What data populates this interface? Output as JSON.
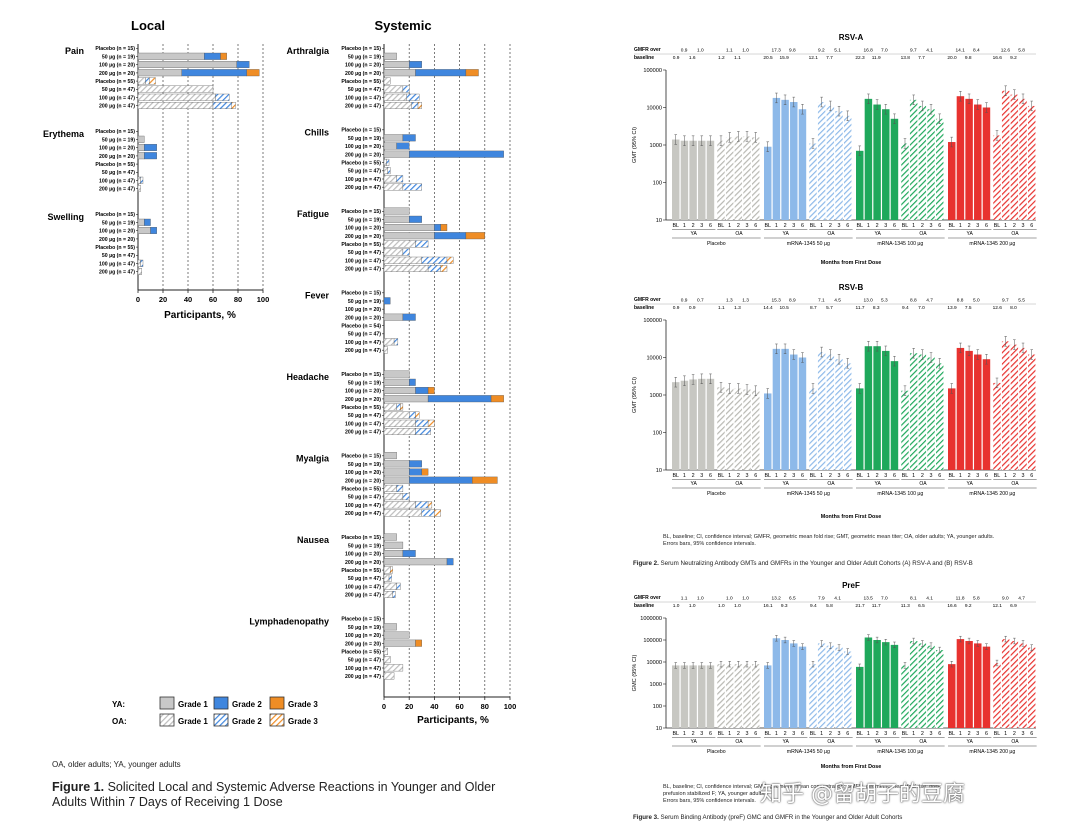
{
  "fig1": {
    "local_title": "Local",
    "systemic_title": "Systemic",
    "xlabel": "Participants, %",
    "ticks": [
      "0",
      "20",
      "40",
      "60",
      "80",
      "100"
    ],
    "dose_labels": [
      "Placebo (n = 15)",
      "50 µg (n = 19)",
      "100 µg (n = 20)",
      "200 µg (n = 20)",
      "Placebo (n = 55)",
      "50 µg (n = 47)",
      "100 µg (n = 47)",
      "200 µg (n = 47)"
    ],
    "fever_placebo_oa_label": "Placebo (n = 54)",
    "legend": {
      "ya": "YA:",
      "oa": "OA:",
      "g1": "Grade 1",
      "g2": "Grade 2",
      "g3": "Grade 3"
    },
    "colors": {
      "g1": "#c8c8c8",
      "g2": "#3f86de",
      "g3": "#ef8d25"
    },
    "footnote": "OA, older adults;  YA, younger adults",
    "caption_bold": "Figure 1.",
    "caption_text": " Solicited Local and Systemic Adverse Reactions in Younger and Older Adults Within 7 Days of Receiving 1 Dose"
  },
  "chart_data": [
    {
      "type": "bar",
      "title": "Local",
      "orientation": "horizontal-stacked",
      "xlabel": "Participants, %",
      "xlim": [
        0,
        100
      ],
      "series": [
        "Grade 1",
        "Grade 2",
        "Grade 3"
      ],
      "groups": [
        {
          "name": "Pain",
          "values": [
            [
              0,
              0,
              0
            ],
            [
              53,
              13,
              5
            ],
            [
              79,
              10,
              0
            ],
            [
              35,
              52,
              10
            ],
            [
              6,
              3,
              5
            ],
            [
              60,
              0,
              0
            ],
            [
              62,
              11,
              0
            ],
            [
              60,
              15,
              3
            ]
          ]
        },
        {
          "name": "Erythema",
          "values": [
            [
              0,
              0,
              0
            ],
            [
              5,
              0,
              0
            ],
            [
              5,
              10,
              0
            ],
            [
              5,
              10,
              0
            ],
            [
              0,
              0,
              0
            ],
            [
              0,
              0,
              0
            ],
            [
              2,
              2,
              0
            ],
            [
              2,
              0,
              0
            ]
          ]
        },
        {
          "name": "Swelling",
          "values": [
            [
              0,
              0,
              0
            ],
            [
              5,
              5,
              0
            ],
            [
              10,
              5,
              0
            ],
            [
              0,
              0,
              0
            ],
            [
              0,
              0,
              0
            ],
            [
              0,
              0,
              0
            ],
            [
              2,
              2,
              0
            ],
            [
              3,
              0,
              0
            ]
          ]
        }
      ]
    },
    {
      "type": "bar",
      "title": "Systemic",
      "orientation": "horizontal-stacked",
      "xlabel": "Participants, %",
      "xlim": [
        0,
        100
      ],
      "series": [
        "Grade 1",
        "Grade 2",
        "Grade 3"
      ],
      "groups": [
        {
          "name": "Arthralgia",
          "values": [
            [
              0,
              0,
              0
            ],
            [
              10,
              0,
              0
            ],
            [
              20,
              10,
              0
            ],
            [
              25,
              40,
              10
            ],
            [
              5,
              0,
              0
            ],
            [
              15,
              5,
              0
            ],
            [
              18,
              10,
              0
            ],
            [
              22,
              5,
              3
            ]
          ]
        },
        {
          "name": "Chills",
          "values": [
            [
              0,
              0,
              0
            ],
            [
              15,
              10,
              0
            ],
            [
              10,
              10,
              0
            ],
            [
              20,
              75,
              0
            ],
            [
              2,
              2,
              0
            ],
            [
              3,
              2,
              0
            ],
            [
              10,
              5,
              0
            ],
            [
              15,
              15,
              0
            ]
          ]
        },
        {
          "name": "Fatigue",
          "values": [
            [
              20,
              0,
              0
            ],
            [
              20,
              10,
              0
            ],
            [
              40,
              5,
              5
            ],
            [
              40,
              25,
              15
            ],
            [
              25,
              10,
              0
            ],
            [
              15,
              5,
              0
            ],
            [
              30,
              20,
              5
            ],
            [
              35,
              10,
              5
            ]
          ]
        },
        {
          "name": "Fever",
          "values": [
            [
              0,
              0,
              0
            ],
            [
              0,
              5,
              0
            ],
            [
              0,
              0,
              0
            ],
            [
              15,
              10,
              0
            ],
            [
              0,
              0,
              0
            ],
            [
              0,
              0,
              0
            ],
            [
              8,
              3,
              0
            ],
            [
              3,
              0,
              0
            ]
          ]
        },
        {
          "name": "Headache",
          "values": [
            [
              20,
              0,
              0
            ],
            [
              20,
              5,
              0
            ],
            [
              25,
              10,
              5
            ],
            [
              35,
              50,
              10
            ],
            [
              10,
              3,
              2
            ],
            [
              20,
              5,
              3
            ],
            [
              25,
              10,
              5
            ],
            [
              25,
              12,
              0
            ]
          ]
        },
        {
          "name": "Myalgia",
          "values": [
            [
              10,
              0,
              0
            ],
            [
              20,
              10,
              0
            ],
            [
              20,
              10,
              5
            ],
            [
              20,
              50,
              20
            ],
            [
              10,
              5,
              0
            ],
            [
              15,
              5,
              0
            ],
            [
              25,
              10,
              3
            ],
            [
              30,
              10,
              5
            ]
          ]
        },
        {
          "name": "Nausea",
          "values": [
            [
              10,
              0,
              0
            ],
            [
              15,
              0,
              0
            ],
            [
              15,
              10,
              0
            ],
            [
              50,
              5,
              0
            ],
            [
              5,
              0,
              2
            ],
            [
              4,
              2,
              0
            ],
            [
              10,
              3,
              0
            ],
            [
              7,
              2,
              0
            ]
          ]
        },
        {
          "name": "Lymphadenopathy",
          "values": [
            [
              0,
              0,
              0
            ],
            [
              10,
              0,
              0
            ],
            [
              20,
              0,
              0
            ],
            [
              25,
              0,
              5
            ],
            [
              3,
              0,
              0
            ],
            [
              5,
              0,
              0
            ],
            [
              15,
              0,
              0
            ],
            [
              8,
              0,
              0
            ]
          ]
        }
      ]
    },
    {
      "type": "bar",
      "title": "RSV-A",
      "ylabel": "GMT (95% CI)",
      "xlabel": "Months from First Dose",
      "yscale": "log",
      "ylim": [
        10,
        100000
      ],
      "yticks": [
        "100000",
        "10000",
        "1000",
        "100",
        "10"
      ],
      "timepoints": [
        "BL",
        "1",
        "2",
        "3",
        "6"
      ],
      "groups": [
        "Placebo",
        "mRNA-1345 50 µg",
        "mRNA-1345 100 µg",
        "mRNA-1345 200 µg"
      ],
      "cohorts": [
        "YA",
        "OA"
      ],
      "values": [
        [
          1400,
          1300,
          1300,
          1300,
          1300
        ],
        [
          1300,
          1600,
          1700,
          1700,
          1600
        ],
        [
          900,
          18000,
          16000,
          14000,
          9000
        ],
        [
          1100,
          14000,
          11000,
          8000,
          6000
        ],
        [
          700,
          17000,
          12000,
          9000,
          5000
        ],
        [
          1100,
          16000,
          11000,
          9000,
          5000
        ],
        [
          1200,
          20000,
          17000,
          12000,
          10000
        ],
        [
          1800,
          28000,
          22000,
          17000,
          11000
        ]
      ],
      "gmfr_label": "GMFR over baseline",
      "gmfr": [
        [
          "0.9",
          "1.6",
          "0.9",
          "1.0"
        ],
        [
          "1.2",
          "1.1",
          "1.1",
          "1.0"
        ],
        [
          "20.5",
          "15.9",
          "17.3",
          "9.8"
        ],
        [
          "12.1",
          "7.7",
          "9.2",
          "5.1"
        ],
        [
          "22.3",
          "11.9",
          "16.8",
          "7.0"
        ],
        [
          "13.8",
          "7.7",
          "9.7",
          "4.1"
        ],
        [
          "20.0",
          "9.8",
          "14.1",
          "8.4"
        ],
        [
          "16.6",
          "9.2",
          "12.6",
          "5.8"
        ]
      ]
    },
    {
      "type": "bar",
      "title": "RSV-B",
      "ylabel": "GMT (95% CI)",
      "xlabel": "Months from First Dose",
      "yscale": "log",
      "ylim": [
        10,
        100000
      ],
      "yticks": [
        "100000",
        "10000",
        "1000",
        "100",
        "10"
      ],
      "timepoints": [
        "BL",
        "1",
        "2",
        "3",
        "6"
      ],
      "groups": [
        "Placebo",
        "mRNA-1345 50 µg",
        "mRNA-1345 100 µg",
        "mRNA-1345 200 µg"
      ],
      "cohorts": [
        "YA",
        "OA"
      ],
      "values": [
        [
          2200,
          2400,
          2600,
          2700,
          2700
        ],
        [
          1600,
          1500,
          1500,
          1400,
          1300
        ],
        [
          1100,
          17000,
          17000,
          12000,
          10000
        ],
        [
          1500,
          14000,
          12000,
          9000,
          7000
        ],
        [
          1500,
          20000,
          20000,
          15000,
          8000
        ],
        [
          1300,
          13000,
          12000,
          10000,
          7000
        ],
        [
          1500,
          18000,
          15000,
          12000,
          9000
        ],
        [
          2100,
          27000,
          22000,
          18000,
          12000
        ]
      ],
      "gmfr_label": "GMFR over baseline",
      "gmfr": [
        [
          "0.9",
          "0.9",
          "0.9",
          "0.7"
        ],
        [
          "1.1",
          "1.3",
          "1.3",
          "1.3"
        ],
        [
          "14.4",
          "10.5",
          "15.3",
          "8.9"
        ],
        [
          "8.7",
          "5.7",
          "7.1",
          "4.5"
        ],
        [
          "11.7",
          "8.3",
          "13.0",
          "5.3"
        ],
        [
          "9.4",
          "7.0",
          "8.8",
          "4.7"
        ],
        [
          "13.9",
          "7.5",
          "8.8",
          "5.0"
        ],
        [
          "12.6",
          "8.0",
          "9.7",
          "5.5"
        ]
      ]
    },
    {
      "type": "bar",
      "title": "PreF",
      "ylabel": "GMC (95% CI)",
      "xlabel": "Months from First Dose",
      "yscale": "log",
      "ylim": [
        10,
        1000000
      ],
      "yticks": [
        "1000000",
        "100000",
        "10000",
        "1000",
        "100",
        "10"
      ],
      "timepoints": [
        "BL",
        "1",
        "2",
        "3",
        "6"
      ],
      "groups": [
        "Placebo",
        "mRNA-1345 50 µg",
        "mRNA-1345 100 µg",
        "mRNA-1345 200 µg"
      ],
      "cohorts": [
        "YA",
        "OA"
      ],
      "values": [
        [
          7000,
          7000,
          7000,
          7000,
          7000
        ],
        [
          8000,
          8000,
          8000,
          8000,
          8000
        ],
        [
          7000,
          120000,
          100000,
          70000,
          50000
        ],
        [
          8000,
          70000,
          55000,
          45000,
          30000
        ],
        [
          6000,
          130000,
          100000,
          80000,
          60000
        ],
        [
          7000,
          90000,
          70000,
          55000,
          35000
        ],
        [
          8000,
          110000,
          90000,
          70000,
          50000
        ],
        [
          9000,
          110000,
          90000,
          70000,
          45000
        ]
      ],
      "gmfr_label": "GMFR over baseline",
      "gmfr": [
        [
          "1.0",
          "1.0",
          "1.1",
          "1.0"
        ],
        [
          "1.0",
          "1.0",
          "1.0",
          "1.0"
        ],
        [
          "16.1",
          "9.3",
          "13.2",
          "6.5"
        ],
        [
          "9.4",
          "5.8",
          "7.9",
          "4.1"
        ],
        [
          "21.7",
          "11.7",
          "13.5",
          "7.0"
        ],
        [
          "11.3",
          "6.5",
          "8.1",
          "4.1"
        ],
        [
          "16.6",
          "9.2",
          "11.8",
          "5.8"
        ],
        [
          "12.1",
          "6.9",
          "9.0",
          "4.7"
        ]
      ]
    }
  ],
  "fig2": {
    "footnote1": "BL, baseline; CI, confidence interval; GMFR, geometric mean fold rise; GMT, geometric mean titer; OA, older adults; YA, younger adults.",
    "footnote2": "Errors bars, 95% confidence intervals.",
    "caption_bold": "Figure 2.",
    "caption_text": " Serum Neutralizing Antibody GMTs and GMFRs in the Younger and Older Adult Cohorts (A) RSV-A and (B) RSV-B"
  },
  "fig3": {
    "footnote1": "BL, baseline; CI, confidence interval; GMC, geometric mean concentration; GMFR, geometric mean fold rise; preF,",
    "footnote2": "prefusion stabilized F; YA, younger adults.",
    "footnote3": "Errors bars, 95% confidence intervals.",
    "caption_bold": "Figure 3.",
    "caption_text": " Serum Binding Antibody (preF) GMC and GMFR in the Younger and Older Adult Cohorts"
  },
  "panel_colors": [
    "#c7c7c2",
    "#8db9e9",
    "#1ea85b",
    "#e8322f"
  ],
  "watermark": "知乎 @留胡子的豆腐"
}
